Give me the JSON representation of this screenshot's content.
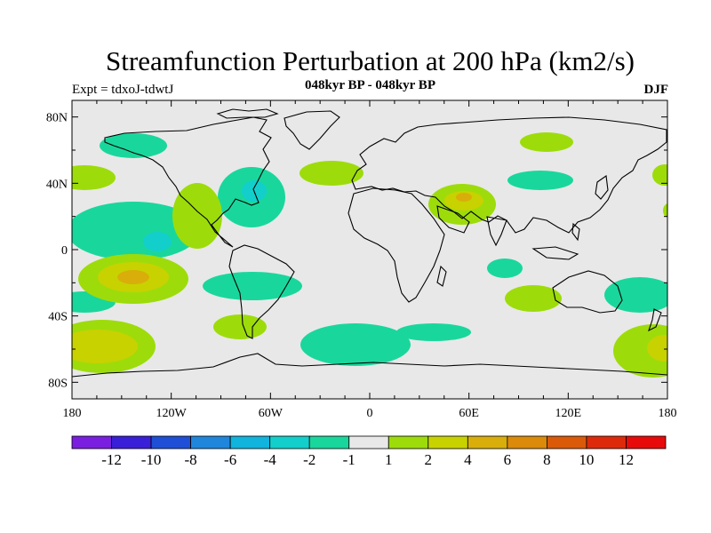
{
  "title": "Streamfunction Perturbation at 200 hPa (km2/s)",
  "subtitle": "048kyr BP - 048kyr BP",
  "left_label": "Expt = tdxoJ-tdwtJ",
  "right_label": "DJF",
  "map": {
    "projection": "cylindrical equidistant",
    "lon_range": [
      -180,
      180
    ],
    "lat_range": [
      -90,
      90
    ],
    "lon_tick_labels": [
      "180",
      "120W",
      "60W",
      "0",
      "60E",
      "120E",
      "180"
    ],
    "lat_tick_labels": [
      "80N",
      "40N",
      "0",
      "40S",
      "80S"
    ],
    "background": "#e8e8e8"
  },
  "colorbar": {
    "labels": [
      "-12",
      "-10",
      "-8",
      "-6",
      "-4",
      "-2",
      "-1",
      "1",
      "2",
      "4",
      "6",
      "8",
      "10",
      "12"
    ],
    "colors": [
      "#7a1fe0",
      "#3a1fd8",
      "#1f4fd6",
      "#1f86dc",
      "#10b4dd",
      "#12cfcc",
      "#19d79c",
      "#e8e8e8",
      "#9ddc0a",
      "#c8d200",
      "#d9ae0a",
      "#dc8a0a",
      "#db5a0a",
      "#de2a0a",
      "#e80a0a"
    ]
  }
}
